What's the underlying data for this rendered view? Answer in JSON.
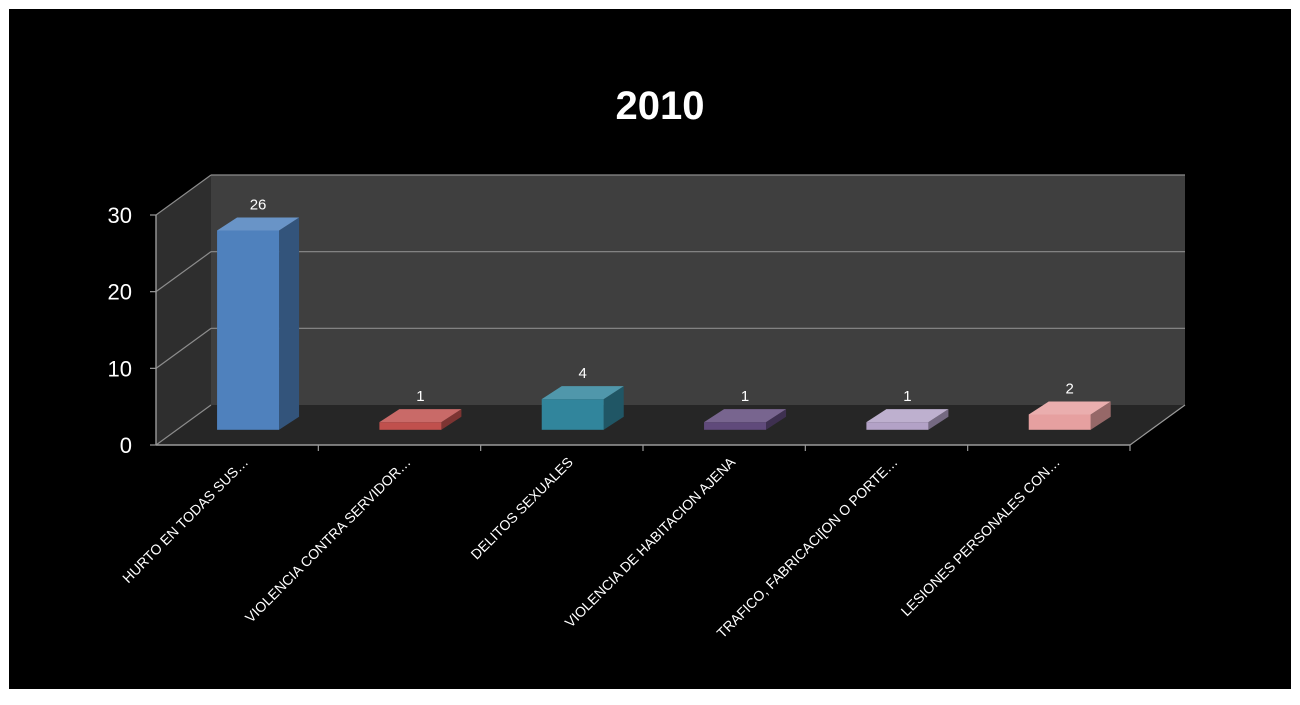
{
  "chart_data": {
    "type": "bar",
    "title": "2010",
    "categories": [
      "HURTO EN TODAS SUS…",
      "VIOLENCIA CONTRA SERVIDOR…",
      "DELITOS SEXUALES",
      "VIOLENCIA DE HABITACION AJENA",
      "TRAFICO, FABRICACI[ON O PORTE…",
      "LESIONES PERSONALES CON…"
    ],
    "values": [
      26,
      1,
      4,
      1,
      1,
      2
    ],
    "data_labels": [
      "26",
      "1",
      "4",
      "1",
      "1",
      "2"
    ],
    "yticks": [
      0,
      10,
      20,
      30
    ],
    "ylim": [
      0,
      30
    ],
    "grid": true,
    "legend": "none",
    "style": "3d-column",
    "colors": [
      "#4f81bd",
      "#c0504d",
      "#31859c",
      "#604a7b",
      "#b3a2c7",
      "#e6a0a0"
    ],
    "background": "#000000",
    "wall_color": "#3f3f3f",
    "floor_color": "#262626",
    "text_color": "#ffffff"
  }
}
